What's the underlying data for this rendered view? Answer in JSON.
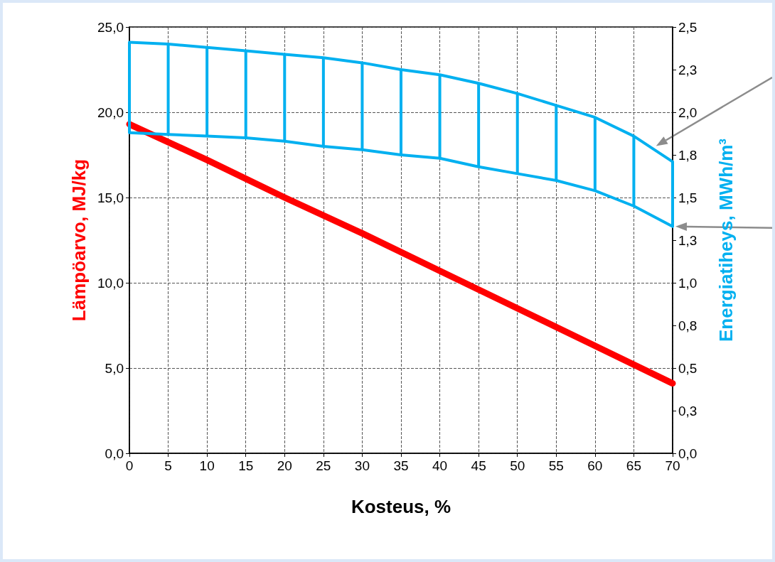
{
  "chart_data": {
    "type": "line",
    "xlabel": "Kosteus, %",
    "ylabel": "Lämpöarvo, MJ/kg",
    "y2label": "Energiatiheys, MWh/m³",
    "xlim": [
      0,
      70
    ],
    "xticks": [
      0,
      5,
      10,
      15,
      20,
      25,
      30,
      35,
      40,
      45,
      50,
      55,
      60,
      65,
      70
    ],
    "ylim": [
      0,
      25
    ],
    "yticks": [
      {
        "value": 0,
        "label": "0,0"
      },
      {
        "value": 5,
        "label": "5,0"
      },
      {
        "value": 10,
        "label": "10,0"
      },
      {
        "value": 15,
        "label": "15,0"
      },
      {
        "value": 20,
        "label": "20,0"
      },
      {
        "value": 25,
        "label": "25,0"
      }
    ],
    "y2lim": [
      0,
      2.5
    ],
    "y2ticks": [
      {
        "value": 0,
        "label": "0,0"
      },
      {
        "value": 0.25,
        "label": "0,3"
      },
      {
        "value": 0.5,
        "label": "0,5"
      },
      {
        "value": 0.75,
        "label": "0,8"
      },
      {
        "value": 1,
        "label": "1,0"
      },
      {
        "value": 1.25,
        "label": "1,3"
      },
      {
        "value": 1.5,
        "label": "1,5"
      },
      {
        "value": 1.75,
        "label": "1,8"
      },
      {
        "value": 2,
        "label": "2,0"
      },
      {
        "value": 2.25,
        "label": "2,3"
      },
      {
        "value": 2.5,
        "label": "2,5"
      }
    ],
    "grid": true,
    "marker": "none",
    "line_style": "solid",
    "series": [
      {
        "color": "#ff0000",
        "x": [
          0,
          10,
          20,
          30,
          40,
          50,
          60,
          70
        ],
        "values": [
          19.3,
          17.2,
          15.0,
          12.9,
          10.7,
          8.5,
          6.3,
          4.1
        ]
      },
      {
        "color": "#00b0f0",
        "axis": "y2",
        "x": [
          0,
          5,
          10,
          15,
          20,
          25,
          30,
          35,
          40,
          45,
          50,
          55,
          60,
          65,
          70
        ],
        "values": [
          2.41,
          2.4,
          2.38,
          2.36,
          2.34,
          2.32,
          2.29,
          2.25,
          2.22,
          2.17,
          2.11,
          2.04,
          1.97,
          1.86,
          1.71
        ]
      },
      {
        "color": "#00b0f0",
        "axis": "y2",
        "x": [
          0,
          5,
          10,
          15,
          20,
          25,
          30,
          35,
          40,
          45,
          50,
          55,
          60,
          65,
          70
        ],
        "values": [
          1.88,
          1.87,
          1.86,
          1.85,
          1.83,
          1.8,
          1.78,
          1.75,
          1.73,
          1.68,
          1.64,
          1.6,
          1.54,
          1.45,
          1.33
        ]
      },
      {
        "type": "bar",
        "color": "#00b0f0",
        "axis": "y2",
        "x": [
          0,
          5,
          10,
          15,
          20,
          25,
          30,
          35,
          40,
          45,
          50,
          55,
          60,
          65,
          70
        ],
        "base": [
          1.88,
          1.87,
          1.86,
          1.85,
          1.83,
          1.8,
          1.78,
          1.75,
          1.73,
          1.68,
          1.64,
          1.6,
          1.54,
          1.45,
          1.33
        ],
        "values": [
          0.53,
          0.53,
          0.52,
          0.51,
          0.51,
          0.52,
          0.51,
          0.5,
          0.49,
          0.49,
          0.47,
          0.44,
          0.43,
          0.41,
          0.38
        ]
      }
    ]
  }
}
